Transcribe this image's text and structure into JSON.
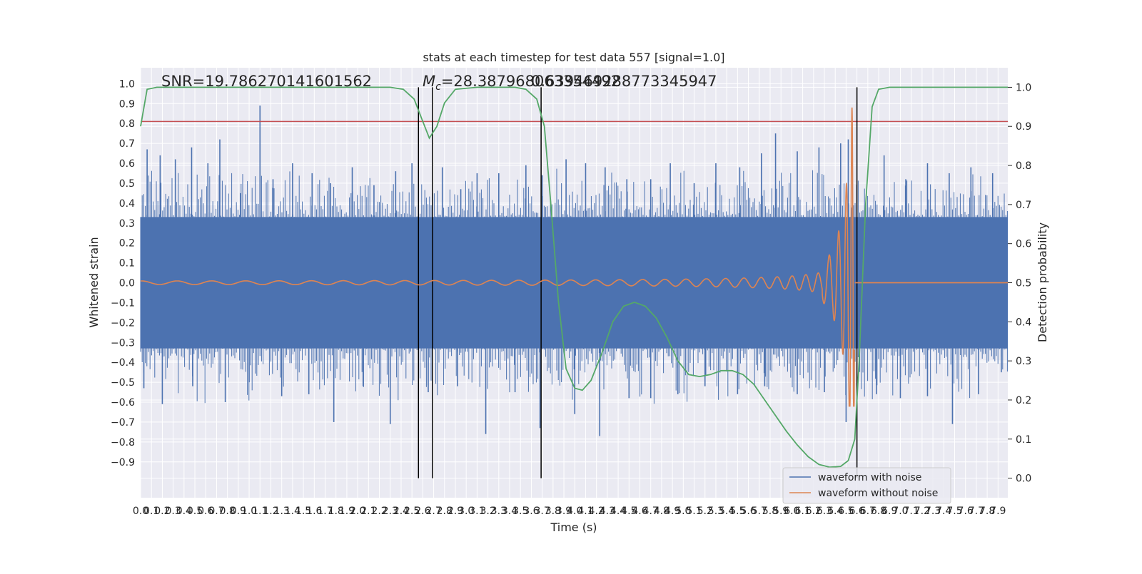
{
  "chart_data": {
    "type": "line",
    "title": "stats at each timestep for test data 557 [signal=1.0]",
    "xlabel": "Time (s)",
    "ylabel": "Whitened strain",
    "y2label": "Detection probability",
    "xlim": [
      0.0,
      7.99
    ],
    "ylim": [
      -1.08,
      1.08
    ],
    "y2lim": [
      -0.05,
      1.05
    ],
    "grid": true,
    "legend_position": "bottom-right",
    "xticks": [
      "0.0",
      "0.1",
      "0.2",
      "0.3",
      "0.4",
      "0.5",
      "0.6",
      "0.7",
      "0.8",
      "0.9",
      "1.0",
      "1.1",
      "1.2",
      "1.3",
      "1.4",
      "1.5",
      "1.6",
      "1.7",
      "1.8",
      "1.9",
      "2.0",
      "2.1",
      "2.2",
      "2.3",
      "2.4",
      "2.5",
      "2.6",
      "2.7",
      "2.8",
      "2.9",
      "3.0",
      "3.1",
      "3.2",
      "3.3",
      "3.4",
      "3.5",
      "3.6",
      "3.7",
      "3.8",
      "3.9",
      "4.0",
      "4.1",
      "4.2",
      "4.3",
      "4.4",
      "4.5",
      "4.6",
      "4.7",
      "4.8",
      "4.9",
      "5.0",
      "5.1",
      "5.2",
      "5.3",
      "5.4",
      "5.5",
      "5.6",
      "5.7",
      "5.8",
      "5.9",
      "6.0",
      "6.1",
      "6.2",
      "6.3",
      "6.4",
      "6.5",
      "6.6",
      "6.7",
      "6.8",
      "6.9",
      "7.0",
      "7.1",
      "7.2",
      "7.3",
      "7.4",
      "7.5",
      "7.6",
      "7.7",
      "7.8",
      "7.9"
    ],
    "yticks": [
      "1.0",
      "0.9",
      "0.8",
      "0.7",
      "0.6",
      "0.5",
      "0.4",
      "0.3",
      "0.2",
      "0.1",
      "0.0",
      "-0.1",
      "-0.2",
      "-0.3",
      "-0.4",
      "-0.5",
      "-0.6",
      "-0.7",
      "-0.8",
      "-0.9"
    ],
    "y2ticks": [
      "1.0",
      "0.9",
      "0.8",
      "0.7",
      "0.6",
      "0.5",
      "0.4",
      "0.3",
      "0.2",
      "0.1",
      "0.0"
    ],
    "annotations": {
      "snr": "SNR=19.786270141601562",
      "mc_prefix": "M",
      "mc_subscript": "c",
      "mc_value": "=28.387968063354492",
      "overlap": "0.639469288773345947"
    },
    "threshold_left_axis": 0.81,
    "vertical_lines_x": [
      2.56,
      2.69,
      3.69,
      6.6
    ],
    "series": [
      {
        "name": "waveform with noise",
        "color": "#4c72b0",
        "axis": "left",
        "noise_band": 0.33,
        "spikes": [
          [
            0.06,
            0.67
          ],
          [
            0.18,
            0.64
          ],
          [
            0.32,
            0.62
          ],
          [
            0.47,
            0.68
          ],
          [
            0.62,
            0.6
          ],
          [
            0.73,
            0.72
          ],
          [
            0.92,
            0.45
          ],
          [
            1.1,
            0.89
          ],
          [
            1.22,
            0.52
          ],
          [
            1.4,
            0.6
          ],
          [
            1.58,
            0.55
          ],
          [
            1.75,
            0.5
          ],
          [
            1.95,
            0.58
          ],
          [
            2.15,
            0.49
          ],
          [
            2.35,
            0.56
          ],
          [
            2.5,
            0.6
          ],
          [
            2.78,
            0.58
          ],
          [
            2.95,
            0.47
          ],
          [
            3.1,
            0.55
          ],
          [
            3.3,
            0.55
          ],
          [
            3.55,
            0.59
          ],
          [
            3.7,
            0.54
          ],
          [
            3.92,
            0.62
          ],
          [
            4.1,
            0.6
          ],
          [
            4.28,
            0.58
          ],
          [
            4.48,
            0.52
          ],
          [
            4.7,
            0.52
          ],
          [
            4.88,
            0.6
          ],
          [
            5.1,
            0.5
          ],
          [
            5.3,
            0.6
          ],
          [
            5.52,
            0.58
          ],
          [
            5.72,
            0.65
          ],
          [
            5.85,
            0.75
          ],
          [
            6.05,
            0.66
          ],
          [
            6.25,
            0.68
          ],
          [
            6.45,
            0.7
          ],
          [
            6.52,
            0.72
          ],
          [
            6.85,
            0.64
          ],
          [
            7.05,
            0.52
          ],
          [
            7.25,
            0.6
          ],
          [
            7.45,
            0.55
          ],
          [
            7.65,
            0.58
          ],
          [
            7.85,
            0.55
          ],
          [
            0.03,
            -0.53
          ],
          [
            0.2,
            -0.61
          ],
          [
            0.48,
            -0.52
          ],
          [
            0.78,
            -0.6
          ],
          [
            1.0,
            -0.5
          ],
          [
            1.3,
            -0.57
          ],
          [
            1.55,
            -0.56
          ],
          [
            1.78,
            -0.7
          ],
          [
            2.05,
            -0.52
          ],
          [
            2.3,
            -0.71
          ],
          [
            2.65,
            -0.55
          ],
          [
            2.92,
            -0.52
          ],
          [
            3.18,
            -0.76
          ],
          [
            3.45,
            -0.55
          ],
          [
            3.68,
            -0.73
          ],
          [
            4.0,
            -0.66
          ],
          [
            4.23,
            -0.77
          ],
          [
            4.5,
            -0.58
          ],
          [
            4.7,
            -0.58
          ],
          [
            4.95,
            -0.56
          ],
          [
            5.2,
            -0.52
          ],
          [
            5.5,
            -0.56
          ],
          [
            5.75,
            -0.52
          ],
          [
            6.05,
            -0.56
          ],
          [
            6.3,
            -0.55
          ],
          [
            6.5,
            -0.7
          ],
          [
            6.78,
            -0.56
          ],
          [
            7.0,
            -0.58
          ],
          [
            7.25,
            -0.57
          ],
          [
            7.48,
            -0.71
          ],
          [
            7.72,
            -0.56
          ],
          [
            7.93,
            -0.45
          ]
        ]
      },
      {
        "name": "waveform without noise",
        "color": "#dd8452",
        "axis": "left",
        "merger_time": 6.58,
        "peak_amplitude": 0.88,
        "start_amplitude": 0.004
      },
      {
        "name": "",
        "color": "#55a868",
        "axis": "right",
        "x": [
          0.0,
          0.06,
          0.15,
          0.3,
          1.0,
          2.0,
          2.3,
          2.42,
          2.52,
          2.59,
          2.66,
          2.73,
          2.8,
          2.9,
          3.1,
          3.45,
          3.55,
          3.65,
          3.72,
          3.78,
          3.85,
          3.92,
          4.0,
          4.07,
          4.15,
          4.25,
          4.35,
          4.45,
          4.55,
          4.65,
          4.75,
          4.85,
          4.95,
          5.05,
          5.15,
          5.25,
          5.35,
          5.45,
          5.55,
          5.65,
          5.75,
          5.85,
          5.95,
          6.05,
          6.15,
          6.25,
          6.35,
          6.45,
          6.52,
          6.58,
          6.62,
          6.68,
          6.74,
          6.8,
          6.9,
          7.0,
          7.99
        ],
        "y": [
          0.9,
          0.995,
          1.0,
          1.0,
          1.0,
          1.0,
          1.0,
          0.995,
          0.97,
          0.92,
          0.87,
          0.9,
          0.96,
          0.995,
          1.0,
          1.0,
          0.995,
          0.97,
          0.9,
          0.7,
          0.45,
          0.28,
          0.23,
          0.225,
          0.25,
          0.32,
          0.4,
          0.44,
          0.45,
          0.44,
          0.41,
          0.36,
          0.3,
          0.265,
          0.26,
          0.265,
          0.275,
          0.275,
          0.265,
          0.24,
          0.2,
          0.16,
          0.12,
          0.085,
          0.055,
          0.035,
          0.028,
          0.03,
          0.045,
          0.1,
          0.3,
          0.7,
          0.95,
          0.995,
          1.0,
          1.0,
          1.0
        ]
      }
    ]
  }
}
